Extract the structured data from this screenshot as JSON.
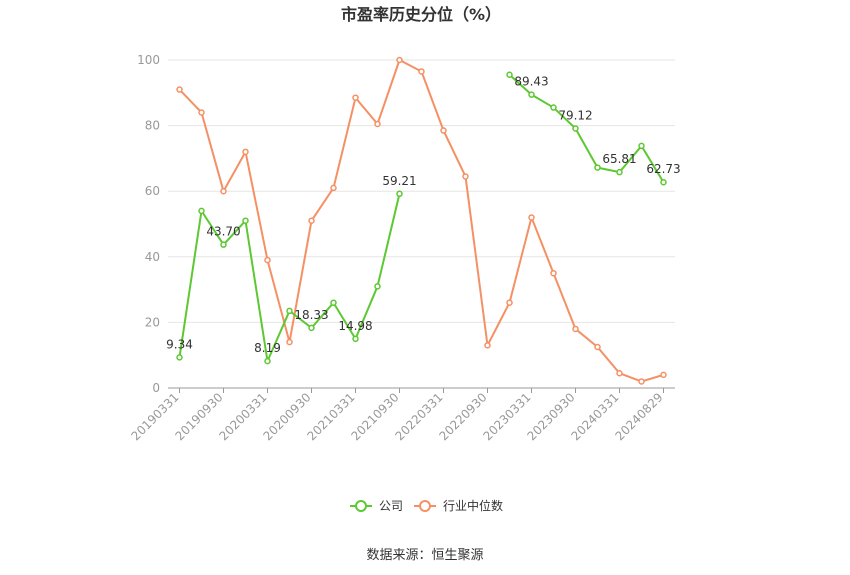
{
  "chart_data": {
    "type": "line",
    "title": "市盈率历史分位（%）",
    "ylim": [
      0,
      100
    ],
    "yticks": [
      0,
      20,
      40,
      60,
      80,
      100
    ],
    "xtick_labels": [
      "20190331",
      "20190930",
      "20200331",
      "20200930",
      "20210331",
      "20210930",
      "20220331",
      "20220930",
      "20230331",
      "20230930",
      "20240331",
      "20240829"
    ],
    "x": [
      "20190331",
      "20190630",
      "20190930",
      "20191231",
      "20200331",
      "20200630",
      "20200930",
      "20201231",
      "20210331",
      "20210630",
      "20210930",
      "20211231",
      "20220331",
      "20220630",
      "20220930",
      "20221231",
      "20230331",
      "20230630",
      "20230930",
      "20231231",
      "20240331",
      "20240630",
      "20240829"
    ],
    "series": [
      {
        "name": "公司",
        "color": "#5cc832",
        "values": [
          9.34,
          54,
          43.7,
          51,
          8.19,
          23.5,
          18.33,
          26,
          14.98,
          31,
          59.21,
          null,
          null,
          null,
          null,
          95.5,
          89.43,
          85.5,
          79.12,
          67.2,
          65.81,
          73.8,
          62.73
        ]
      },
      {
        "name": "行业中位数",
        "color": "#f59064",
        "values": [
          91,
          84,
          60,
          72,
          39,
          14,
          51,
          61,
          88.5,
          80.5,
          100,
          96.5,
          78.5,
          64.5,
          13,
          26,
          52,
          35,
          18,
          12.5,
          4.5,
          2,
          4
        ]
      }
    ],
    "data_labels": [
      {
        "series": 0,
        "index": 0,
        "text": "9.34"
      },
      {
        "series": 0,
        "index": 2,
        "text": "43.70"
      },
      {
        "series": 0,
        "index": 4,
        "text": "8.19"
      },
      {
        "series": 0,
        "index": 6,
        "text": "18.33"
      },
      {
        "series": 0,
        "index": 8,
        "text": "14.98"
      },
      {
        "series": 0,
        "index": 10,
        "text": "59.21"
      },
      {
        "series": 0,
        "index": 16,
        "text": "89.43"
      },
      {
        "series": 0,
        "index": 18,
        "text": "79.12"
      },
      {
        "series": 0,
        "index": 20,
        "text": "65.81"
      },
      {
        "series": 0,
        "index": 22,
        "text": "62.73"
      }
    ],
    "grid": true,
    "legend_position": "bottom-center"
  },
  "source_text": "数据来源：恒生聚源"
}
